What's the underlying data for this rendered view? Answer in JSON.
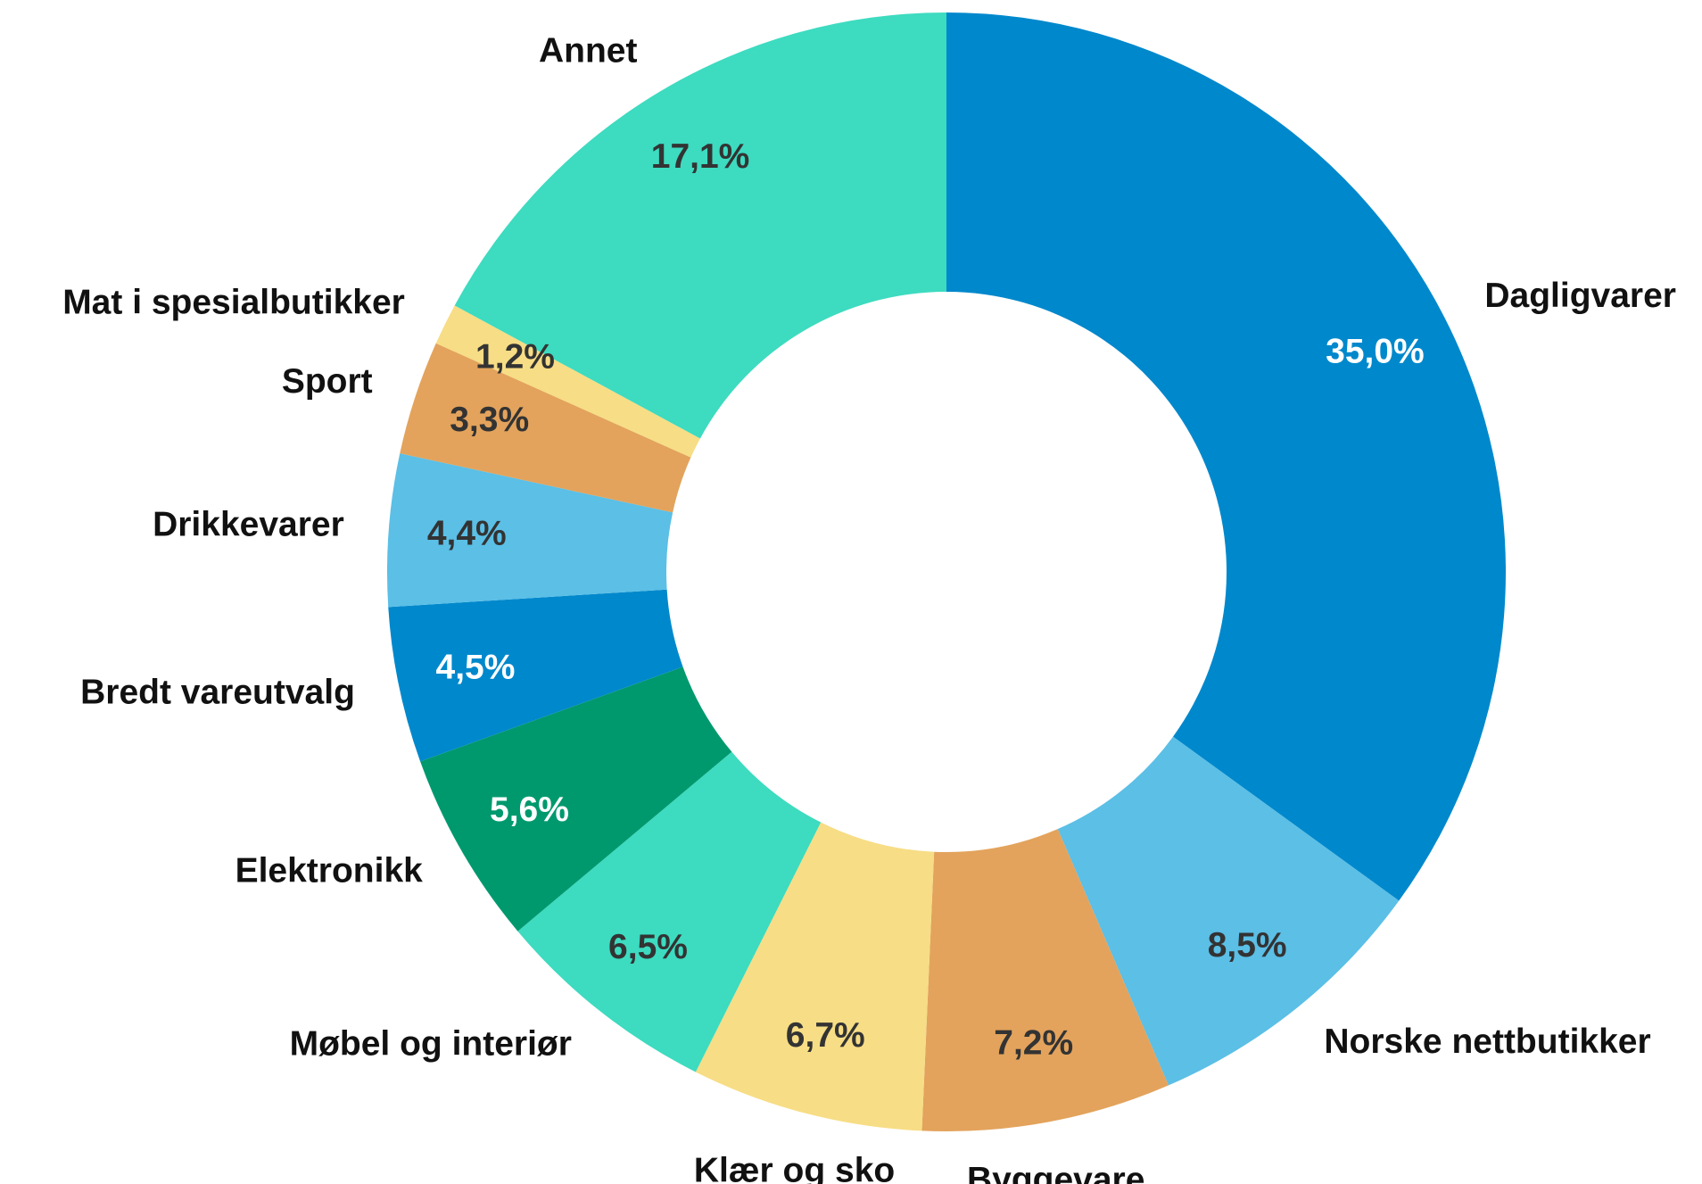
{
  "chart_data": {
    "type": "donut",
    "categories": [
      "Dagligvarer",
      "Norske nettbutikker",
      "Byggevare",
      "Klær og sko",
      "Møbel og interiør",
      "Elektronikk",
      "Bredt vareutvalg",
      "Drikkevarer",
      "Sport",
      "Mat i spesialbutikker",
      "Annet"
    ],
    "values": [
      35.0,
      8.5,
      7.2,
      6.7,
      6.5,
      5.6,
      4.5,
      4.4,
      3.3,
      1.2,
      17.1
    ],
    "value_labels": [
      "35,0%",
      "8,5%",
      "7,2%",
      "6,7%",
      "6,5%",
      "5,6%",
      "4,5%",
      "4,4%",
      "3,3%",
      "1,2%",
      "17,1%"
    ],
    "colors": [
      "#0088cc",
      "#5bbfe6",
      "#e3a35c",
      "#f7dd85",
      "#3ddbc0",
      "#00996e",
      "#0088cc",
      "#5bbfe6",
      "#e3a35c",
      "#f7dd85",
      "#3ddbc0"
    ]
  }
}
